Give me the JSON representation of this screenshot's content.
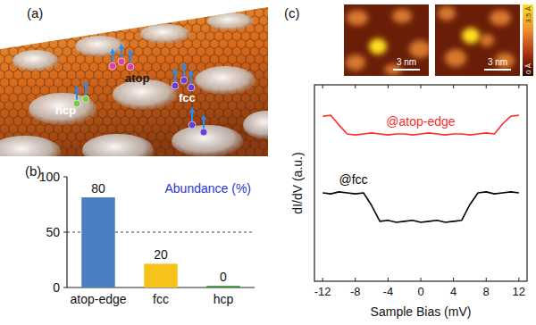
{
  "panels": {
    "illustration": {
      "label": "(a)",
      "sites": [
        "atop",
        "fcc",
        "hcp"
      ]
    },
    "stm_images": {
      "label": "(c)",
      "scale_bars": [
        "3 nm",
        "3 nm"
      ],
      "colorbar_ticks": [
        {
          "value": 0,
          "label": "0 Å"
        },
        {
          "value": 3.5,
          "label": "3.5 Å"
        }
      ]
    }
  },
  "chart_data": [
    {
      "type": "bar",
      "title": "Abundance (%)",
      "annotations": [
        "(b)"
      ],
      "categories": [
        "atop-edge",
        "fcc",
        "hcp"
      ],
      "values": [
        80,
        20,
        0
      ],
      "colors": [
        "#4a7fc1",
        "#f7c21a",
        "#2e8b2e"
      ],
      "ylim": [
        0,
        100
      ],
      "yticks": [
        0,
        50,
        100
      ],
      "grid": true,
      "data_labels": true
    },
    {
      "type": "line",
      "x_label": "Sample Bias (mV)",
      "y_label": "dI/dV (a.u.)",
      "x": [
        -12,
        -11,
        -10,
        -9,
        -8,
        -7,
        -6,
        -5,
        -4,
        -3,
        -2,
        -1,
        0,
        1,
        2,
        3,
        4,
        5,
        6,
        7,
        8,
        9,
        10,
        11,
        12
      ],
      "series": [
        {
          "name": "@atop-edge",
          "color": "#ff2a2a",
          "values": [
            8.4,
            8.45,
            7.95,
            7.5,
            7.45,
            7.5,
            7.55,
            7.5,
            7.45,
            7.5,
            7.5,
            7.45,
            7.5,
            7.55,
            7.5,
            7.45,
            7.5,
            7.5,
            7.45,
            7.5,
            7.55,
            7.5,
            8.0,
            8.4,
            8.45
          ]
        },
        {
          "name": "@fcc",
          "color": "#000000",
          "values": [
            4.5,
            4.45,
            4.55,
            4.5,
            4.45,
            4.5,
            3.85,
            3.05,
            3.1,
            3.0,
            3.05,
            3.1,
            3.0,
            3.05,
            3.1,
            3.0,
            3.05,
            3.1,
            3.9,
            4.5,
            4.55,
            4.45,
            4.5,
            4.55,
            4.5
          ]
        }
      ],
      "xlim": [
        -13,
        13
      ],
      "ylim": [
        0,
        10
      ],
      "xticks": [
        -12,
        -8,
        -4,
        0,
        4,
        8,
        12
      ],
      "tick_labels": "x"
    }
  ]
}
